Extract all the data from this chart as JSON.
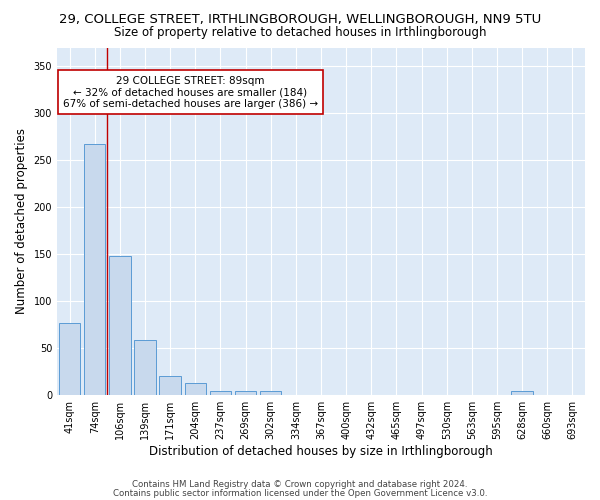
{
  "title": "29, COLLEGE STREET, IRTHLINGBOROUGH, WELLINGBOROUGH, NN9 5TU",
  "subtitle": "Size of property relative to detached houses in Irthlingborough",
  "xlabel": "Distribution of detached houses by size in Irthlingborough",
  "ylabel": "Number of detached properties",
  "categories": [
    "41sqm",
    "74sqm",
    "106sqm",
    "139sqm",
    "171sqm",
    "204sqm",
    "237sqm",
    "269sqm",
    "302sqm",
    "334sqm",
    "367sqm",
    "400sqm",
    "432sqm",
    "465sqm",
    "497sqm",
    "530sqm",
    "563sqm",
    "595sqm",
    "628sqm",
    "660sqm",
    "693sqm"
  ],
  "values": [
    76,
    267,
    148,
    58,
    20,
    12,
    4,
    4,
    4,
    0,
    0,
    0,
    0,
    0,
    0,
    0,
    0,
    0,
    4,
    0,
    0
  ],
  "bar_color": "#c8d9ed",
  "bar_edge_color": "#5b9bd5",
  "vline_x": 1.5,
  "vline_color": "#c00000",
  "annotation_line1": "29 COLLEGE STREET: 89sqm",
  "annotation_line2": "← 32% of detached houses are smaller (184)",
  "annotation_line3": "67% of semi-detached houses are larger (386) →",
  "annotation_box_color": "#ffffff",
  "annotation_box_edge": "#c00000",
  "ylim": [
    0,
    370
  ],
  "yticks": [
    0,
    50,
    100,
    150,
    200,
    250,
    300,
    350
  ],
  "footer1": "Contains HM Land Registry data © Crown copyright and database right 2024.",
  "footer2": "Contains public sector information licensed under the Open Government Licence v3.0.",
  "plot_background": "#deeaf7",
  "grid_color": "#ffffff",
  "title_fontsize": 9.5,
  "subtitle_fontsize": 8.5,
  "axis_label_fontsize": 8.5,
  "tick_fontsize": 7,
  "annotation_fontsize": 7.5,
  "footer_fontsize": 6.2
}
